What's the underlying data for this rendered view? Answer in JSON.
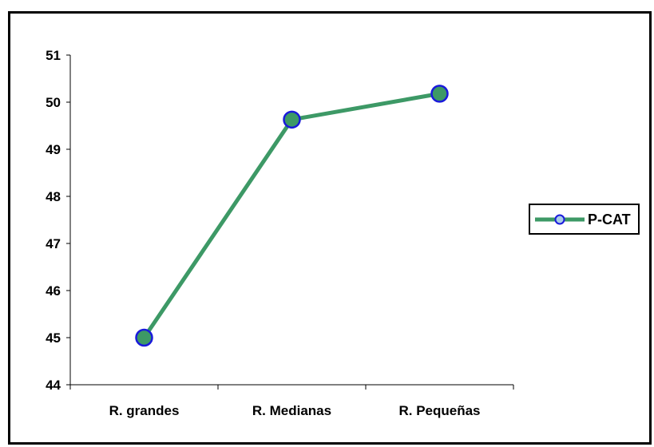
{
  "chart_data": {
    "type": "line",
    "categories": [
      "R. grandes",
      "R. Medianas",
      "R. Pequeñas"
    ],
    "series": [
      {
        "name": "P-CAT",
        "values": [
          45.0,
          49.63,
          50.18
        ],
        "line_color": "#3d9966",
        "marker_fill": "#3d9966",
        "marker_edge": "#1a1adb"
      }
    ],
    "title": "",
    "xlabel": "",
    "ylabel": "",
    "ylim": [
      44,
      51
    ],
    "yticks": [
      "44",
      "45",
      "46",
      "47",
      "48",
      "49",
      "50",
      "51"
    ],
    "grid": false,
    "legend_position": "right"
  }
}
